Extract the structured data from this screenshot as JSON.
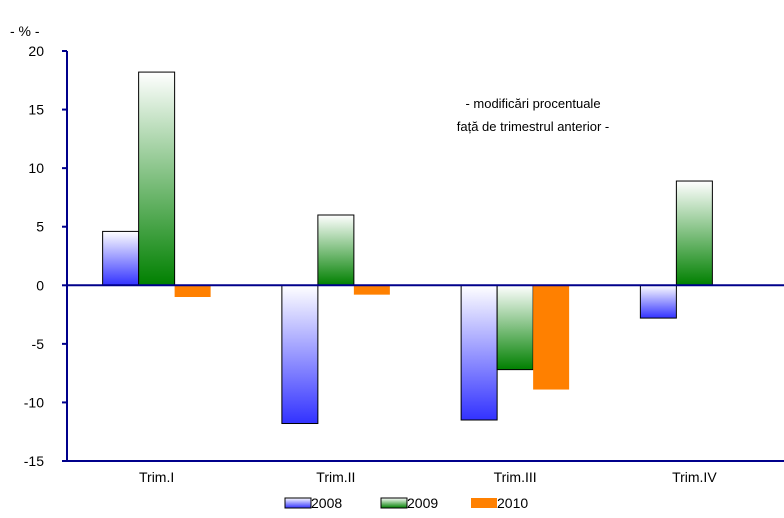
{
  "chart_data": {
    "type": "bar",
    "unit_label": "- % -",
    "annotation": [
      "- modificări procentuale",
      "față de trimestrul anterior -"
    ],
    "categories": [
      "Trim.I",
      "Trim.II",
      "Trim.III",
      "Trim.IV"
    ],
    "ylim": [
      -15,
      20
    ],
    "yticks": [
      20,
      15,
      10,
      5,
      0,
      -5,
      -10,
      -15
    ],
    "series": [
      {
        "name": "2008",
        "values": [
          4.6,
          -11.8,
          -11.5,
          -2.8
        ],
        "color": "#3232ff"
      },
      {
        "name": "2009",
        "values": [
          18.2,
          6.0,
          -7.2,
          8.9
        ],
        "color": "#008000"
      },
      {
        "name": "2010",
        "values": [
          -1.0,
          -0.8,
          -8.9,
          null
        ],
        "color": "#ff8000"
      }
    ],
    "legend_position": "bottom"
  }
}
